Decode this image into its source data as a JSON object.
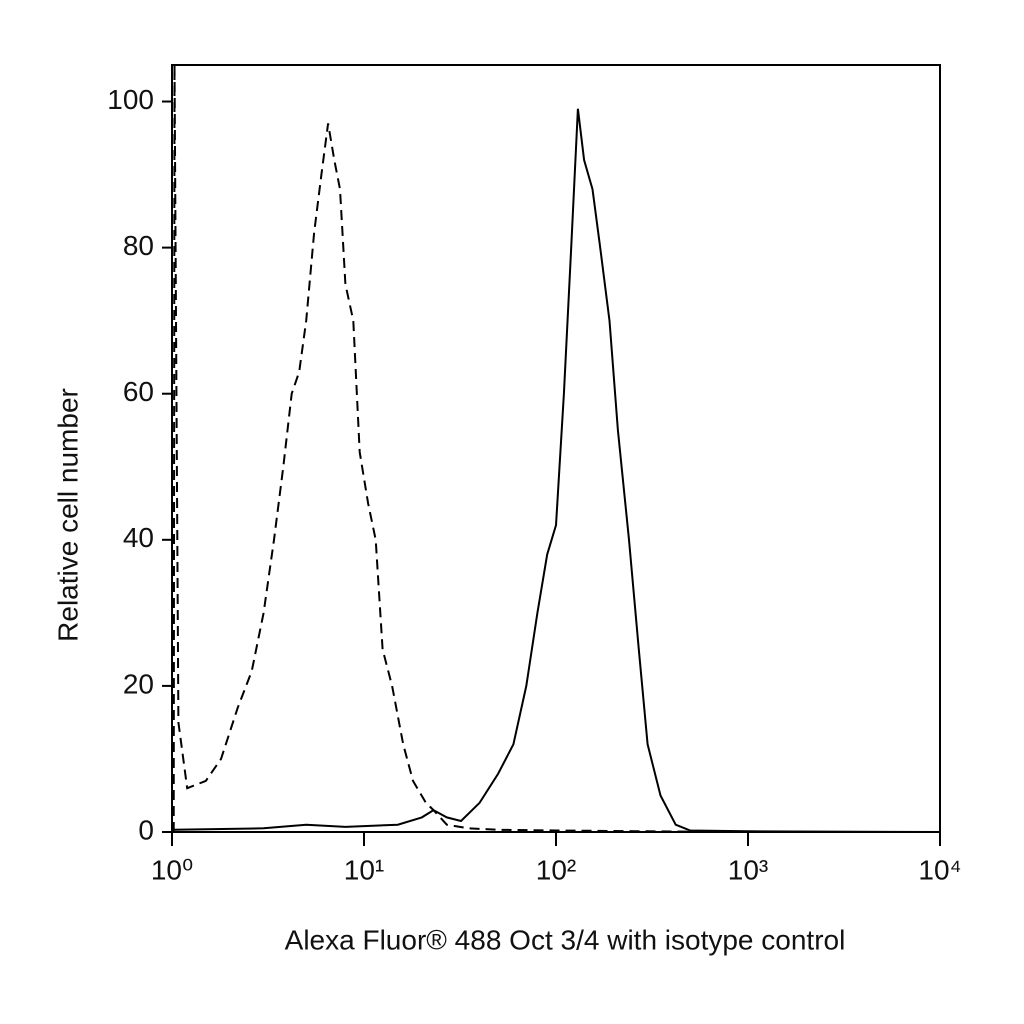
{
  "chart_data": {
    "type": "line",
    "x_label": "Alexa Fluor® 488 Oct 3/4 with isotype control",
    "y_label": "Relative cell number",
    "xscale": "log",
    "xlim": [
      1,
      10000
    ],
    "ylim": [
      0,
      105
    ],
    "xticks": [
      {
        "value": 1,
        "label": "10⁰"
      },
      {
        "value": 10,
        "label": "10¹"
      },
      {
        "value": 100,
        "label": "10²"
      },
      {
        "value": 1000,
        "label": "10³"
      },
      {
        "value": 10000,
        "label": "10⁴"
      }
    ],
    "yticks": [
      0,
      20,
      40,
      60,
      80,
      100
    ],
    "series": [
      {
        "color": "#000000",
        "dash": "dashed",
        "x": [
          1.02,
          1.03,
          1.08,
          1.2,
          1.5,
          1.8,
          2.2,
          2.6,
          3.0,
          3.4,
          3.8,
          4.2,
          4.6,
          5.0,
          5.5,
          6.0,
          6.5,
          7.0,
          7.5,
          8.0,
          8.8,
          9.5,
          10.5,
          11.5,
          12.5,
          14,
          16,
          18,
          21,
          23,
          27,
          35,
          50,
          100,
          300,
          1000,
          10000
        ],
        "values": [
          0,
          105,
          15,
          6,
          7,
          10,
          17,
          22,
          30,
          40,
          50,
          60,
          63,
          70,
          82,
          90,
          97,
          92,
          88,
          75,
          70,
          52,
          45,
          40,
          25,
          20,
          12,
          7,
          4,
          3,
          1,
          0.5,
          0.3,
          0.2,
          0.1,
          0,
          0
        ]
      },
      {
        "color": "#000000",
        "dash": "solid",
        "x": [
          1.02,
          3,
          5,
          8,
          15,
          20,
          23,
          27,
          32,
          40,
          50,
          60,
          70,
          80,
          90,
          100,
          110,
          120,
          130,
          140,
          155,
          170,
          190,
          210,
          240,
          270,
          300,
          350,
          420,
          500,
          1000,
          10000
        ],
        "values": [
          0.3,
          0.5,
          1,
          0.7,
          1,
          2,
          3,
          2,
          1.5,
          4,
          8,
          12,
          20,
          30,
          38,
          42,
          60,
          80,
          99,
          92,
          88,
          80,
          70,
          55,
          40,
          25,
          12,
          5,
          1,
          0.2,
          0.1,
          0
        ]
      }
    ]
  }
}
